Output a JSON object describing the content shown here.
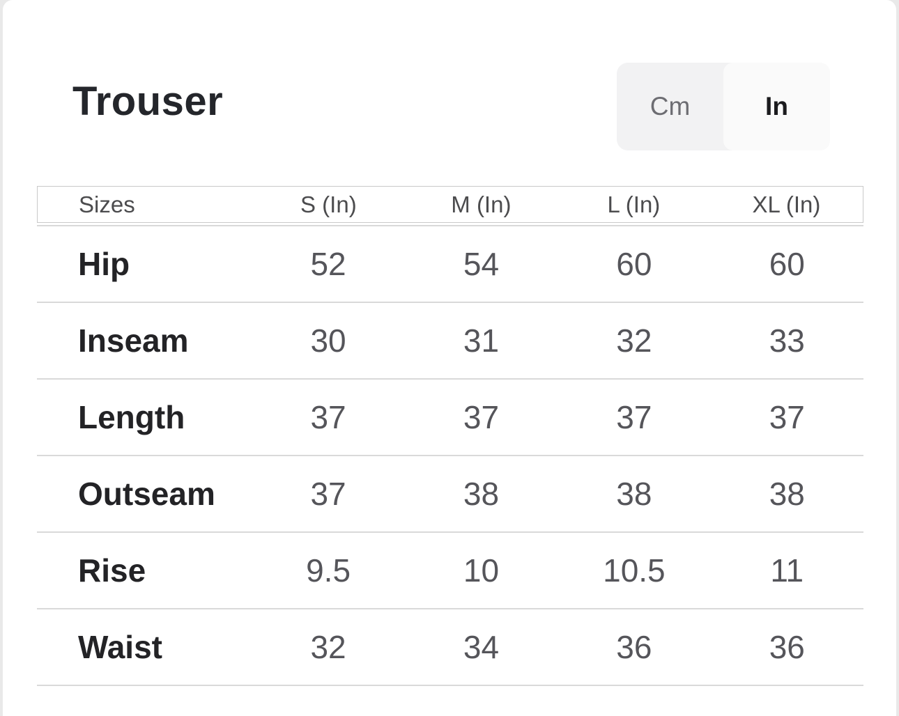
{
  "panel": {
    "title": "Trouser",
    "unit_toggle": {
      "cm_label": "Cm",
      "in_label": "In",
      "selected": "In"
    }
  },
  "table": {
    "headers": [
      "Sizes",
      "S (In)",
      "M (In)",
      "L (In)",
      "XL (In)"
    ],
    "rows": [
      {
        "label": "Hip",
        "values": [
          "52",
          "54",
          "60",
          "60"
        ]
      },
      {
        "label": "Inseam",
        "values": [
          "30",
          "31",
          "32",
          "33"
        ]
      },
      {
        "label": "Length",
        "values": [
          "37",
          "37",
          "37",
          "37"
        ]
      },
      {
        "label": "Outseam",
        "values": [
          "37",
          "38",
          "38",
          "38"
        ]
      },
      {
        "label": "Rise",
        "values": [
          "9.5",
          "10",
          "10.5",
          "11"
        ]
      },
      {
        "label": "Waist",
        "values": [
          "32",
          "34",
          "36",
          "36"
        ]
      }
    ]
  },
  "colors": {
    "panel_background": "#ffffff",
    "page_gutter": "#e9e9e9",
    "toggle_background": "#f2f2f3",
    "toggle_active_background": "#fafafa",
    "toggle_inactive_text": "#6d6d72",
    "toggle_active_text": "#1b1b1e",
    "header_border": "#c9c9c9",
    "row_divider": "#d9d9d9",
    "row_label_text": "#232326",
    "row_value_text": "#55555a",
    "title_text": "#24262b"
  }
}
